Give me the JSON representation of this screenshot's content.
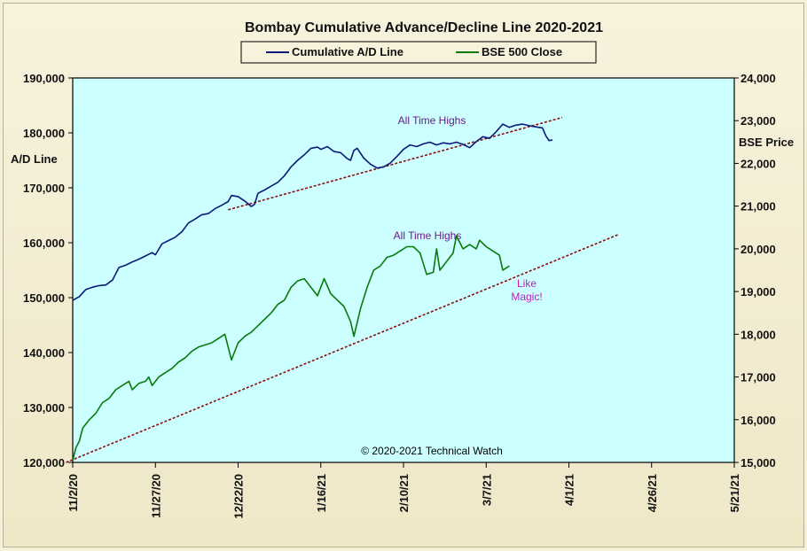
{
  "chart_data": {
    "type": "line",
    "title": "Bombay Cumulative Advance/Decline Line 2020-2021",
    "left_axis": {
      "label": "A/D Line",
      "range": [
        120000,
        190000
      ],
      "ticks": [
        "120,000",
        "130,000",
        "140,000",
        "150,000",
        "160,000",
        "170,000",
        "180,000",
        "190,000"
      ]
    },
    "right_axis": {
      "label": "BSE Price",
      "range": [
        15000,
        24000
      ],
      "ticks": [
        "15,000",
        "16,000",
        "17,000",
        "18,000",
        "19,000",
        "20,000",
        "21,000",
        "22,000",
        "23,000",
        "24,000"
      ]
    },
    "x_axis": {
      "ticks": [
        "11/2/20",
        "11/27/20",
        "12/22/20",
        "1/16/21",
        "2/10/21",
        "3/7/21",
        "4/1/21",
        "4/26/21",
        "5/21/21"
      ],
      "range_days": [
        0,
        200
      ]
    },
    "legend": [
      {
        "name": "Cumulative A/D Line",
        "color": "#0a1a78"
      },
      {
        "name": "BSE 500 Close",
        "color": "#0a7a0a"
      }
    ],
    "series": [
      {
        "name": "Cumulative A/D Line",
        "axis": "left",
        "color": "#0a1a78",
        "points": [
          [
            0,
            149500
          ],
          [
            2,
            150200
          ],
          [
            4,
            151500
          ],
          [
            6,
            151900
          ],
          [
            8,
            152200
          ],
          [
            10,
            152300
          ],
          [
            12,
            153200
          ],
          [
            14,
            155500
          ],
          [
            16,
            155900
          ],
          [
            18,
            156500
          ],
          [
            20,
            157000
          ],
          [
            22,
            157600
          ],
          [
            24,
            158200
          ],
          [
            25,
            157800
          ],
          [
            27,
            159800
          ],
          [
            29,
            160400
          ],
          [
            31,
            161000
          ],
          [
            33,
            162000
          ],
          [
            35,
            163600
          ],
          [
            37,
            164300
          ],
          [
            39,
            165100
          ],
          [
            41,
            165300
          ],
          [
            43,
            166200
          ],
          [
            45,
            166800
          ],
          [
            47,
            167500
          ],
          [
            48,
            168600
          ],
          [
            50,
            168400
          ],
          [
            52,
            167600
          ],
          [
            54,
            166600
          ],
          [
            55,
            167000
          ],
          [
            56,
            169000
          ],
          [
            58,
            169600
          ],
          [
            60,
            170300
          ],
          [
            62,
            171000
          ],
          [
            64,
            172200
          ],
          [
            66,
            173800
          ],
          [
            68,
            175000
          ],
          [
            70,
            176000
          ],
          [
            72,
            177200
          ],
          [
            74,
            177400
          ],
          [
            75,
            177000
          ],
          [
            77,
            177500
          ],
          [
            79,
            176600
          ],
          [
            81,
            176400
          ],
          [
            83,
            175300
          ],
          [
            84,
            175000
          ],
          [
            85,
            176800
          ],
          [
            86,
            177200
          ],
          [
            88,
            175400
          ],
          [
            90,
            174300
          ],
          [
            92,
            173600
          ],
          [
            94,
            173800
          ],
          [
            96,
            174500
          ],
          [
            98,
            175700
          ],
          [
            100,
            177000
          ],
          [
            102,
            177800
          ],
          [
            104,
            177500
          ],
          [
            106,
            178000
          ],
          [
            108,
            178300
          ],
          [
            110,
            177800
          ],
          [
            112,
            178200
          ],
          [
            114,
            178000
          ],
          [
            116,
            178300
          ],
          [
            118,
            177900
          ],
          [
            120,
            177300
          ],
          [
            122,
            178400
          ],
          [
            124,
            179300
          ],
          [
            126,
            179000
          ],
          [
            128,
            180200
          ],
          [
            130,
            181600
          ],
          [
            132,
            181000
          ],
          [
            134,
            181400
          ],
          [
            136,
            181600
          ],
          [
            138,
            181300
          ],
          [
            140,
            181100
          ],
          [
            142,
            180900
          ],
          [
            143,
            179500
          ],
          [
            144,
            178600
          ],
          [
            145,
            178700
          ]
        ]
      },
      {
        "name": "BSE 500 Close",
        "axis": "right",
        "color": "#0a7a0a",
        "points": [
          [
            0,
            15050
          ],
          [
            1,
            15350
          ],
          [
            2,
            15500
          ],
          [
            3,
            15800
          ],
          [
            5,
            16000
          ],
          [
            7,
            16150
          ],
          [
            9,
            16400
          ],
          [
            11,
            16500
          ],
          [
            13,
            16700
          ],
          [
            15,
            16800
          ],
          [
            17,
            16900
          ],
          [
            18,
            16700
          ],
          [
            20,
            16850
          ],
          [
            22,
            16900
          ],
          [
            23,
            17000
          ],
          [
            24,
            16800
          ],
          [
            26,
            17000
          ],
          [
            28,
            17100
          ],
          [
            30,
            17200
          ],
          [
            32,
            17350
          ],
          [
            34,
            17450
          ],
          [
            36,
            17600
          ],
          [
            38,
            17700
          ],
          [
            40,
            17750
          ],
          [
            42,
            17800
          ],
          [
            44,
            17900
          ],
          [
            46,
            18000
          ],
          [
            47,
            17700
          ],
          [
            48,
            17400
          ],
          [
            50,
            17800
          ],
          [
            52,
            17950
          ],
          [
            54,
            18050
          ],
          [
            56,
            18200
          ],
          [
            58,
            18350
          ],
          [
            60,
            18500
          ],
          [
            62,
            18700
          ],
          [
            64,
            18800
          ],
          [
            66,
            19100
          ],
          [
            68,
            19250
          ],
          [
            70,
            19300
          ],
          [
            72,
            19100
          ],
          [
            74,
            18900
          ],
          [
            76,
            19300
          ],
          [
            78,
            18950
          ],
          [
            80,
            18800
          ],
          [
            82,
            18650
          ],
          [
            84,
            18300
          ],
          [
            85,
            17950
          ],
          [
            87,
            18600
          ],
          [
            89,
            19100
          ],
          [
            91,
            19500
          ],
          [
            93,
            19600
          ],
          [
            95,
            19800
          ],
          [
            97,
            19850
          ],
          [
            99,
            19950
          ],
          [
            101,
            20050
          ],
          [
            103,
            20050
          ],
          [
            105,
            19900
          ],
          [
            107,
            19400
          ],
          [
            109,
            19450
          ],
          [
            110,
            20000
          ],
          [
            111,
            19500
          ],
          [
            113,
            19700
          ],
          [
            115,
            19900
          ],
          [
            116,
            20300
          ],
          [
            118,
            20000
          ],
          [
            120,
            20100
          ],
          [
            122,
            20000
          ],
          [
            123,
            20200
          ],
          [
            125,
            20050
          ],
          [
            127,
            19950
          ],
          [
            129,
            19850
          ],
          [
            130,
            19500
          ],
          [
            131,
            19550
          ],
          [
            132,
            19600
          ]
        ]
      }
    ],
    "annotations": [
      {
        "text": "All Time Highs",
        "color": "#6b1a8a"
      },
      {
        "text": "All Time Highs",
        "color": "#6b1a8a"
      },
      {
        "text": "Like",
        "color": "#c020c0"
      },
      {
        "text": "Magic!",
        "color": "#c020c0"
      },
      {
        "text": "© 2020-2021 Technical Watch",
        "color": "#000000"
      }
    ],
    "trendlines": [
      {
        "axis": "left",
        "from": [
          47,
          166000
        ],
        "to": [
          148,
          182800
        ],
        "color": "#8a1010",
        "style": "dotted"
      },
      {
        "axis": "left",
        "from": [
          -2,
          120000
        ],
        "to": [
          165,
          161500
        ],
        "color": "#8a1010",
        "style": "dotted"
      }
    ]
  }
}
